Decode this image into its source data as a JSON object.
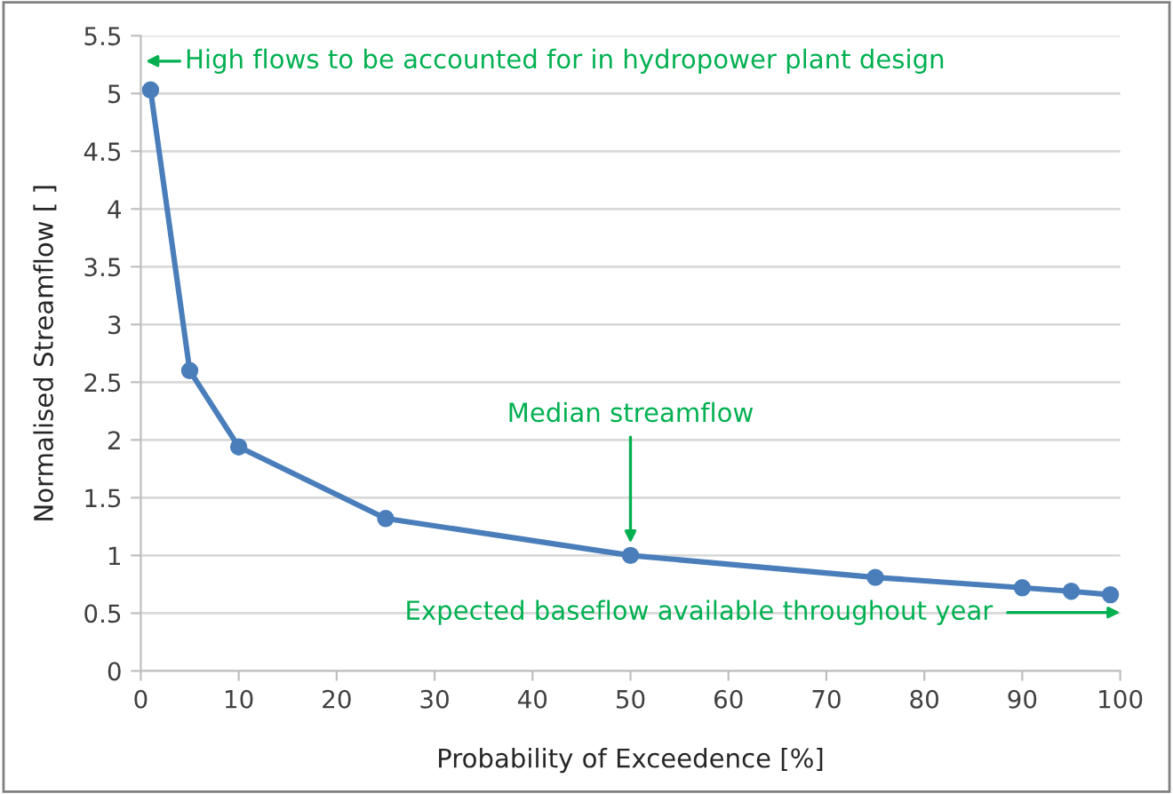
{
  "chart_data": {
    "type": "line",
    "xlabel": "Probability of Exceedence [%]",
    "ylabel": "Normalised Streamflow [ ]",
    "x": [
      1,
      5,
      10,
      25,
      50,
      75,
      90,
      95,
      99
    ],
    "series": [
      {
        "color": "#4a7ebb",
        "values": [
          5.03,
          2.6,
          1.94,
          1.32,
          1.0,
          0.81,
          0.72,
          0.69,
          0.66
        ]
      }
    ],
    "marker": "circle",
    "line_style": "solid",
    "xlim": [
      0,
      100
    ],
    "xticks": [
      0,
      10,
      20,
      30,
      40,
      50,
      60,
      70,
      80,
      90,
      100
    ],
    "ylim": [
      0,
      5.5
    ],
    "yticks": [
      0,
      0.5,
      1,
      1.5,
      2,
      2.5,
      3,
      3.5,
      4,
      4.5,
      5,
      5.5
    ],
    "grid": "y",
    "annotations": [
      "High flows to be accounted for in hydropower plant design",
      {
        "text": "Median streamflow",
        "x": 50,
        "y": 1.0
      },
      "Expected baseflow available throughout year"
    ]
  }
}
